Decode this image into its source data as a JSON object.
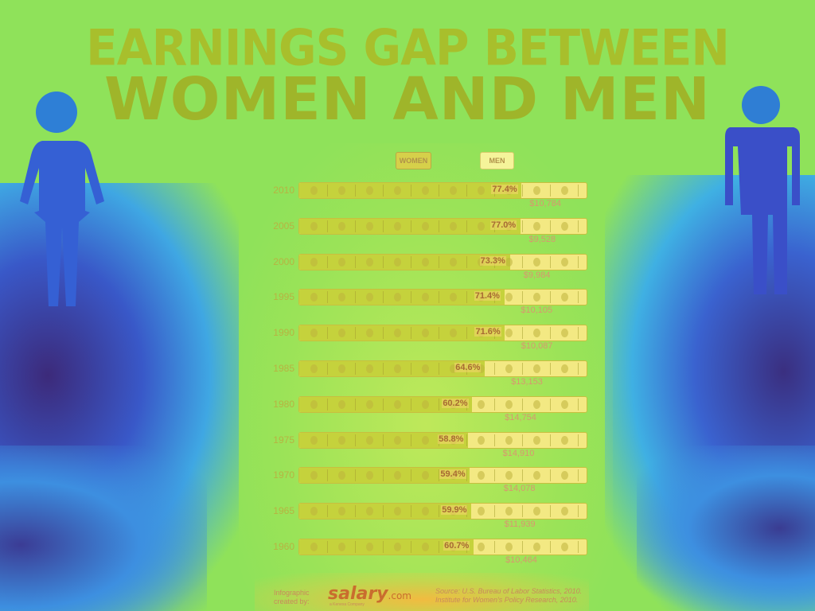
{
  "title": {
    "line1": "EARNINGS GAP BETWEEN",
    "line2": "WOMEN AND MEN"
  },
  "legend": {
    "women_label": "WOMEN",
    "men_label": "MEN"
  },
  "colors": {
    "women_bar": "#c5d23c",
    "men_bar": "#f3e983",
    "women_figure": "#2f5bd0",
    "men_figure": "#3a4fc8"
  },
  "icons": [
    "woman-figure-icon",
    "man-figure-icon",
    "coin-icon"
  ],
  "chart_data": {
    "type": "bar",
    "orientation": "horizontal",
    "categories": [
      "2010",
      "2005",
      "2000",
      "1995",
      "1990",
      "1985",
      "1980",
      "1975",
      "1970",
      "1965",
      "1960"
    ],
    "series": [
      {
        "name": "WOMEN",
        "values": [
          77.4,
          77.0,
          73.3,
          71.4,
          71.6,
          64.6,
          60.2,
          58.8,
          59.4,
          59.9,
          60.7
        ],
        "labels": [
          "77.4%",
          "77.0%",
          "73.3%",
          "71.4%",
          "71.6%",
          "64.6%",
          "60.2%",
          "58.8%",
          "59.4%",
          "59.9%",
          "60.7%"
        ]
      },
      {
        "name": "MEN",
        "values": [
          100,
          100,
          100,
          100,
          100,
          100,
          100,
          100,
          100,
          100,
          100
        ]
      }
    ],
    "gap_labels": [
      "$10,784",
      "$9,528",
      "$9,984",
      "$10,105",
      "$10,087",
      "$13,153",
      "$14,754",
      "$14,910",
      "$14,078",
      "$11,939",
      "$10,464"
    ],
    "xlim": [
      0,
      100
    ]
  },
  "footer": {
    "credit_line1": "Infographic",
    "credit_line2": "created by:",
    "logo_main": "salary",
    "logo_suffix": ".com",
    "logo_sub": "a Kenexa Company",
    "source_line1": "Source: U.S. Bureau of Labor Statistics, 2010.",
    "source_line2": "Institute for Women's Policy Research, 2010."
  }
}
